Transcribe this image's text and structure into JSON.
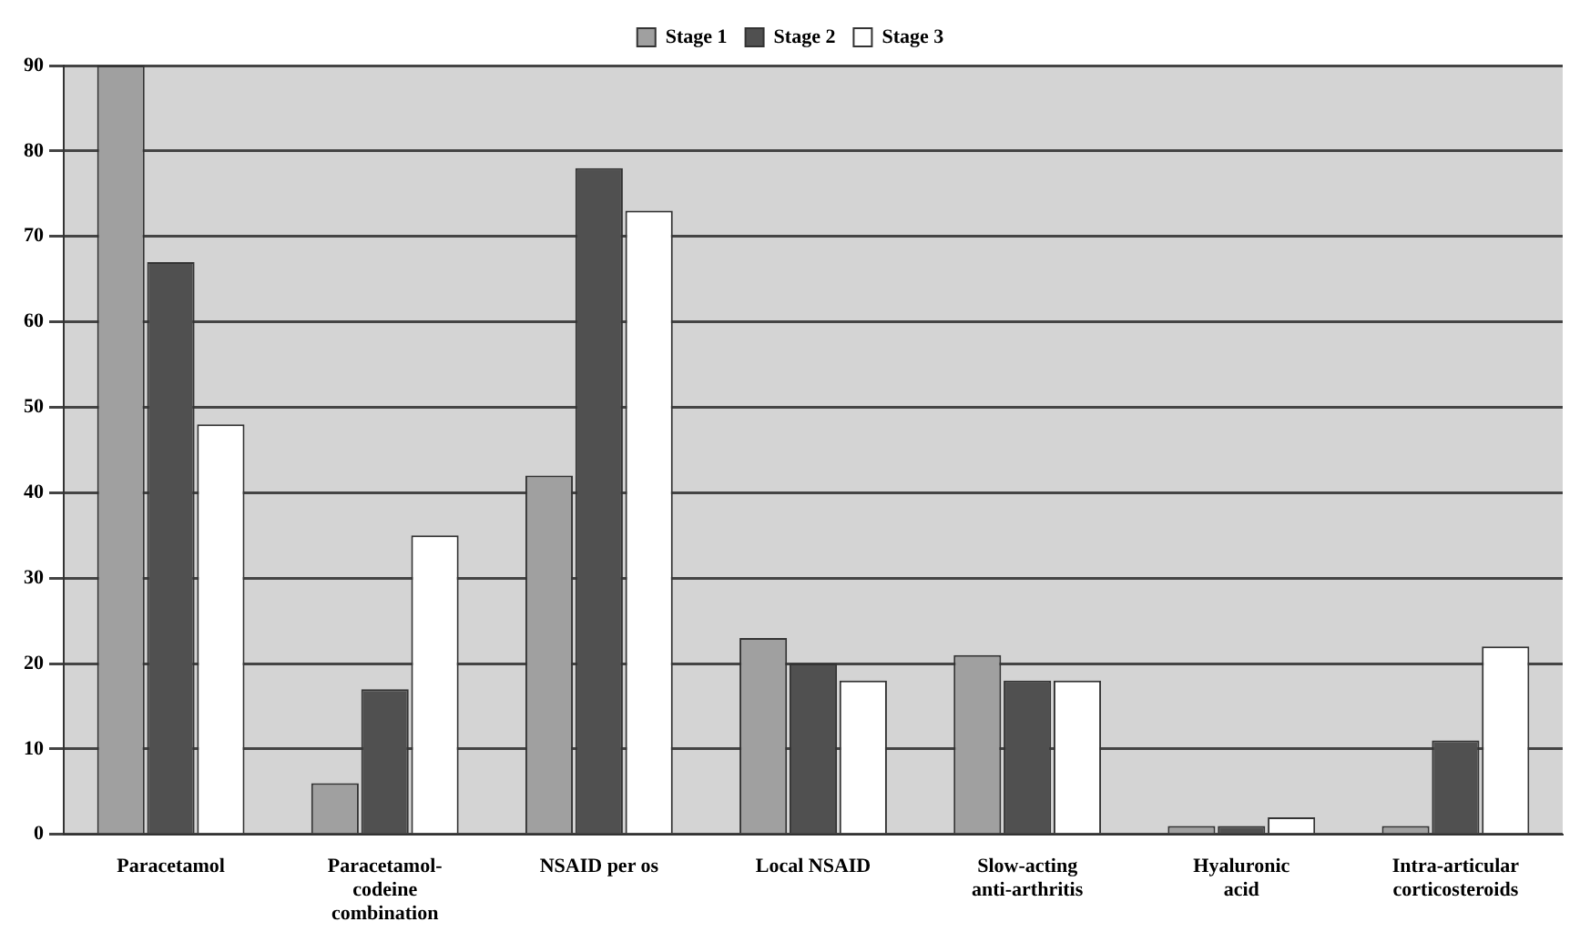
{
  "chart_data": {
    "type": "bar",
    "categories": [
      [
        "Paracetamol"
      ],
      [
        "Paracetamol-",
        "codeine",
        "combination"
      ],
      [
        "NSAID per os"
      ],
      [
        "Local NSAID"
      ],
      [
        "Slow-acting",
        "anti-arthritis"
      ],
      [
        "Hyaluronic",
        "acid"
      ],
      [
        "Intra-articular",
        "corticosteroids"
      ]
    ],
    "series": [
      {
        "name": "Stage 1",
        "color": "#a0a0a0",
        "values": [
          90,
          6,
          42,
          23,
          21,
          1,
          1
        ]
      },
      {
        "name": "Stage 2",
        "color": "#505050",
        "values": [
          67,
          17,
          78,
          20,
          18,
          1,
          11
        ]
      },
      {
        "name": "Stage 3",
        "color": "#ffffff",
        "values": [
          48,
          35,
          73,
          18,
          18,
          2,
          22
        ]
      }
    ],
    "ylim": [
      0,
      90
    ],
    "yticks": [
      0,
      10,
      20,
      30,
      40,
      50,
      60,
      70,
      80,
      90
    ],
    "grid": "y",
    "legend": "top"
  }
}
